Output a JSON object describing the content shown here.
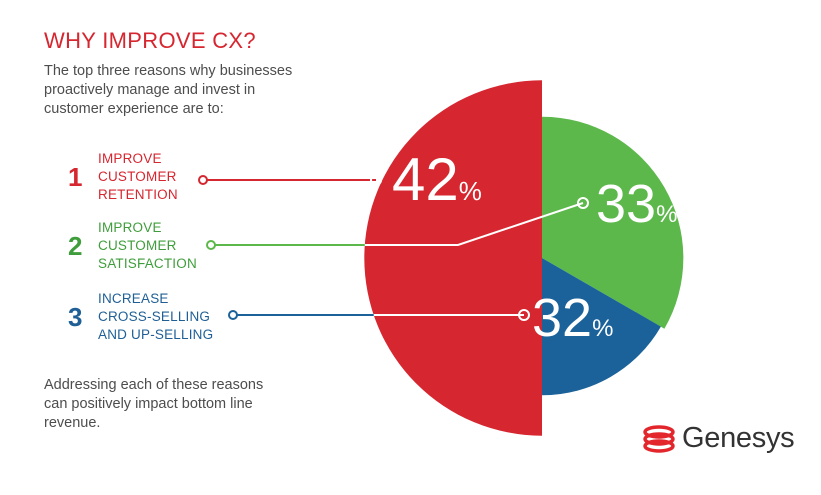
{
  "header": {
    "title": "WHY IMPROVE CX?",
    "intro": "The top three reasons why businesses proactively manage and invest in customer experience are to:"
  },
  "reasons": [
    {
      "number": "1",
      "label": "IMPROVE\nCUSTOMER\nRETENTION",
      "color": "#d6262f"
    },
    {
      "number": "2",
      "label": "IMPROVE\nCUSTOMER\nSATISFACTION",
      "color": "#3f9e3b"
    },
    {
      "number": "3",
      "label": "INCREASE\nCROSS-SELLING\nAND UP-SELLING",
      "color": "#1f5f96"
    }
  ],
  "footer": {
    "note": "Addressing each of these reasons can positively impact bottom line revenue.",
    "logo_text": "Genesys",
    "logo_icon": "genesys-logo-icon"
  },
  "chart_data": {
    "type": "pie",
    "categories": [
      "IMPROVE CUSTOMER RETENTION",
      "IMPROVE CUSTOMER SATISFACTION",
      "INCREASE CROSS-SELLING AND UP-SELLING"
    ],
    "values": [
      42,
      33,
      32
    ],
    "value_labels": [
      "42",
      "33",
      "32"
    ],
    "unit": "%",
    "colors": [
      "#d6262f",
      "#5cb84a",
      "#1a6299"
    ]
  }
}
